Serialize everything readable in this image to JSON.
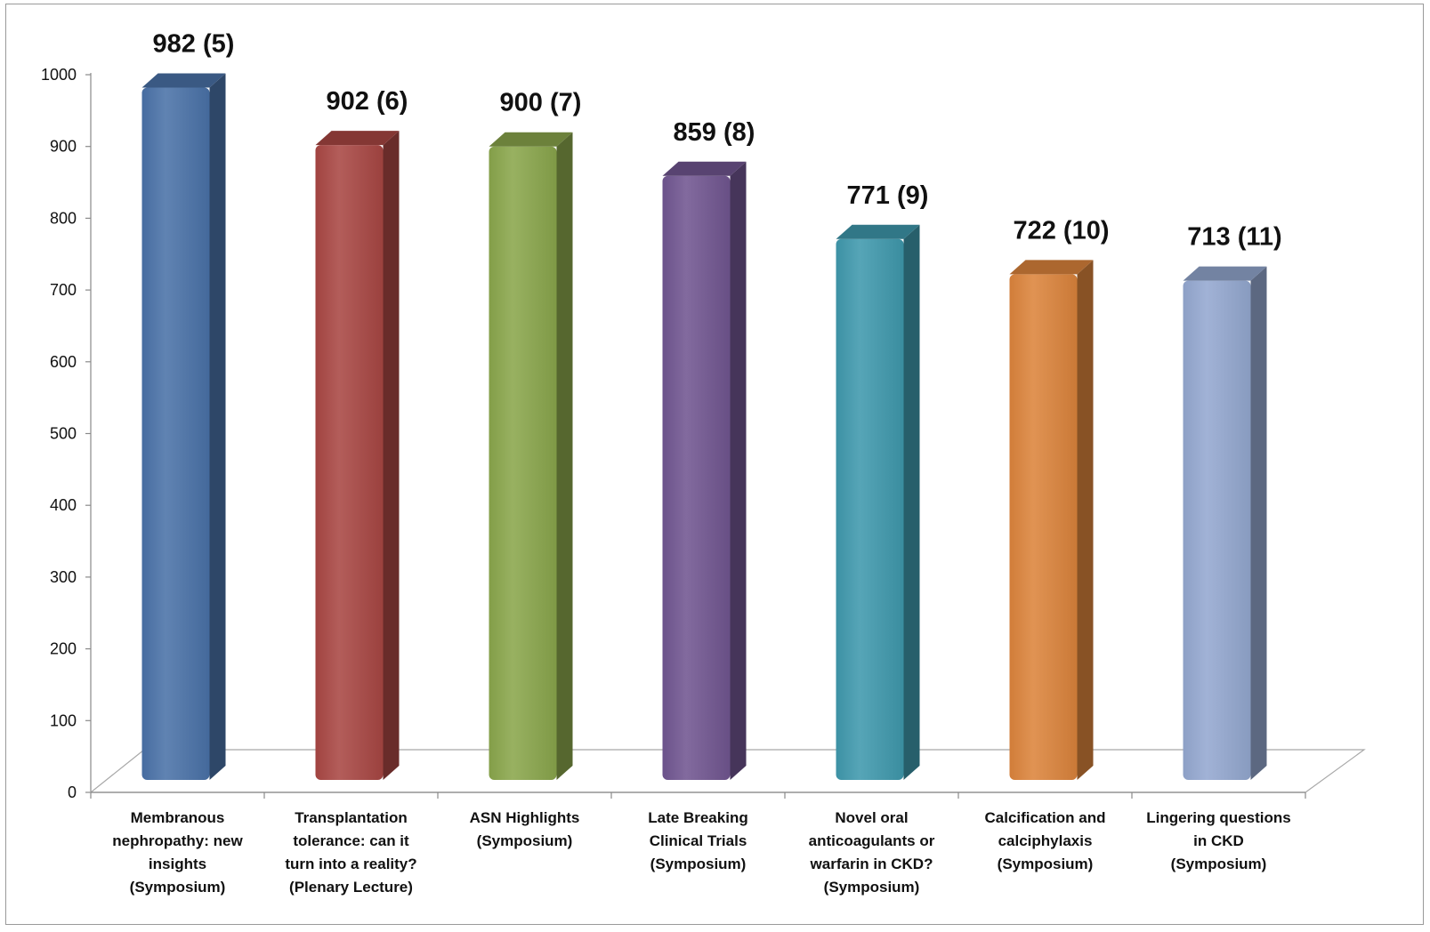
{
  "chart_data": {
    "type": "bar",
    "title": "",
    "xlabel": "",
    "ylabel": "",
    "ylim": [
      0,
      1000
    ],
    "yticks": [
      0,
      100,
      200,
      300,
      400,
      500,
      600,
      700,
      800,
      900,
      1000
    ],
    "grid": false,
    "legend": "none",
    "categories": [
      [
        "Membranous",
        "nephropathy: new",
        "insights",
        "(Symposium)"
      ],
      [
        "Transplantation",
        "tolerance: can it",
        "turn into a reality?",
        "(Plenary Lecture)"
      ],
      [
        "ASN Highlights",
        "(Symposium)"
      ],
      [
        "Late Breaking",
        "Clinical Trials",
        "(Symposium)"
      ],
      [
        "Novel oral",
        "anticoagulants or",
        "warfarin in CKD?",
        "(Symposium)"
      ],
      [
        "Calcification and",
        "calciphylaxis",
        "(Symposium)"
      ],
      [
        "Lingering questions",
        "in CKD",
        "(Symposium)"
      ]
    ],
    "values": [
      982,
      902,
      900,
      859,
      771,
      722,
      713
    ],
    "data_labels": [
      "982 (5)",
      "902 (6)",
      "900 (7)",
      "859 (8)",
      "771 (9)",
      "722 (10)",
      "713 (11)"
    ],
    "colors": [
      "#4a72a8",
      "#a94743",
      "#8aa64c",
      "#715691",
      "#3f99ad",
      "#dc843c",
      "#94a8d0"
    ]
  }
}
